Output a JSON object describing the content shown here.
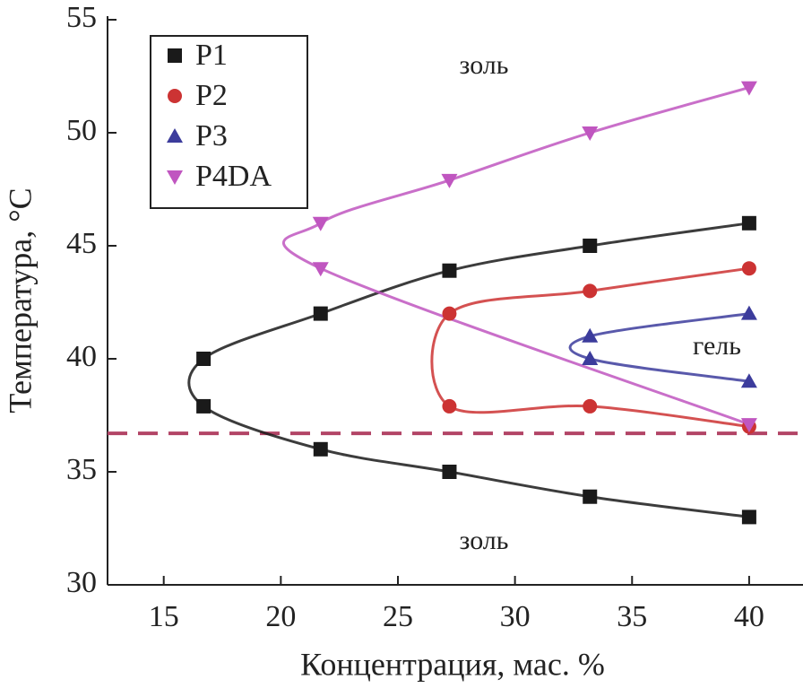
{
  "chart_data": {
    "type": "scatter",
    "x_label": "Концентрация, мас. %",
    "y_label": "Температура, °C",
    "xlim": [
      12.6,
      42.3
    ],
    "ylim": [
      30,
      55
    ],
    "xticks": [
      15,
      20,
      25,
      30,
      35,
      40
    ],
    "yticks": [
      30,
      35,
      40,
      45,
      50,
      55
    ],
    "hline": {
      "value": 36.7,
      "color": "#b24466"
    },
    "annotations": [
      "золь",
      "золь",
      "гель"
    ],
    "series": [
      {
        "name": "P1",
        "color": "#1a1a1a",
        "marker": "square",
        "x": [
          40,
          33.2,
          27.2,
          21.7,
          16.7,
          16.7,
          21.7,
          27.2,
          33.2,
          40
        ],
        "values": [
          33,
          33.9,
          35,
          36,
          37.9,
          40,
          42,
          43.9,
          45,
          46
        ]
      },
      {
        "name": "P2",
        "color": "#cc3333",
        "marker": "circle",
        "x": [
          40,
          33.2,
          27.2,
          27.2,
          33.2,
          40
        ],
        "values": [
          37,
          37.9,
          37.9,
          42,
          43,
          44
        ]
      },
      {
        "name": "P3",
        "color": "#3c3c9c",
        "marker": "triangle-up",
        "x": [
          40,
          33.2,
          33.2,
          40
        ],
        "values": [
          39,
          40,
          41,
          42
        ]
      },
      {
        "name": "P4DA",
        "color": "#c056c0",
        "marker": "triangle-down",
        "x": [
          40,
          21.7,
          21.7,
          27.2,
          33.2,
          40
        ],
        "values": [
          37.1,
          44,
          46,
          47.9,
          50,
          52
        ]
      }
    ]
  }
}
